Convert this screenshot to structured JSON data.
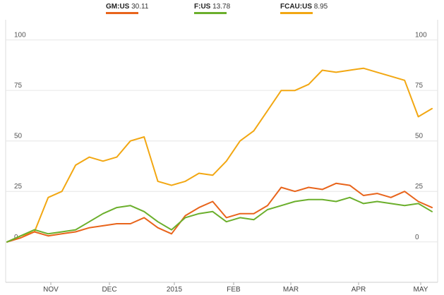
{
  "legend": [
    {
      "symbol": "GM:US",
      "value": "30.11",
      "color": "#E8641B"
    },
    {
      "symbol": "F:US",
      "value": "13.78",
      "color": "#6BAF2C"
    },
    {
      "symbol": "FCAU:US",
      "value": "8.95",
      "color": "#F2A712"
    }
  ],
  "chart_data": {
    "type": "line",
    "title": "",
    "xlabel": "",
    "ylabel": "",
    "ylim": [
      -20,
      110
    ],
    "y_ticks": [
      0,
      25,
      50,
      75,
      100
    ],
    "x_tick_labels": [
      "NOV",
      "DEC",
      "2015",
      "FEB",
      "MAR",
      "APR",
      "MAY"
    ],
    "x": [
      "Oct 8",
      "Oct 13",
      "Oct 20",
      "Oct 27",
      "Nov 3",
      "Nov 10",
      "Nov 17",
      "Nov 24",
      "Dec 1",
      "Dec 8",
      "Dec 15",
      "Dec 22",
      "Dec 29",
      "Jan 5",
      "Jan 12",
      "Jan 19",
      "Jan 26",
      "Feb 2",
      "Feb 9",
      "Feb 16",
      "Feb 23",
      "Mar 2",
      "Mar 9",
      "Mar 16",
      "Mar 23",
      "Mar 30",
      "Apr 6",
      "Apr 13",
      "Apr 20",
      "Apr 27",
      "May 4",
      "May 8"
    ],
    "series": [
      {
        "name": "GM:US",
        "color": "#E8641B",
        "values": [
          0,
          2,
          5,
          3,
          4,
          5,
          7,
          8,
          9,
          9,
          12,
          7,
          4,
          13,
          17,
          20,
          12,
          14,
          14,
          18,
          27,
          25,
          27,
          26,
          29,
          28,
          23,
          24,
          22,
          25,
          20,
          17
        ]
      },
      {
        "name": "F:US",
        "color": "#6BAF2C",
        "values": [
          0,
          3,
          6,
          4,
          5,
          6,
          10,
          14,
          17,
          18,
          15,
          10,
          6,
          12,
          14,
          15,
          10,
          12,
          11,
          16,
          18,
          20,
          21,
          21,
          20,
          22,
          19,
          20,
          19,
          18,
          19,
          15
        ]
      },
      {
        "name": "FCAU:US",
        "color": "#F2A712",
        "values": [
          0,
          3,
          5,
          22,
          25,
          38,
          42,
          40,
          42,
          50,
          52,
          30,
          28,
          30,
          34,
          33,
          40,
          50,
          55,
          65,
          75,
          75,
          78,
          85,
          84,
          85,
          86,
          84,
          82,
          80,
          62,
          66
        ]
      }
    ]
  }
}
